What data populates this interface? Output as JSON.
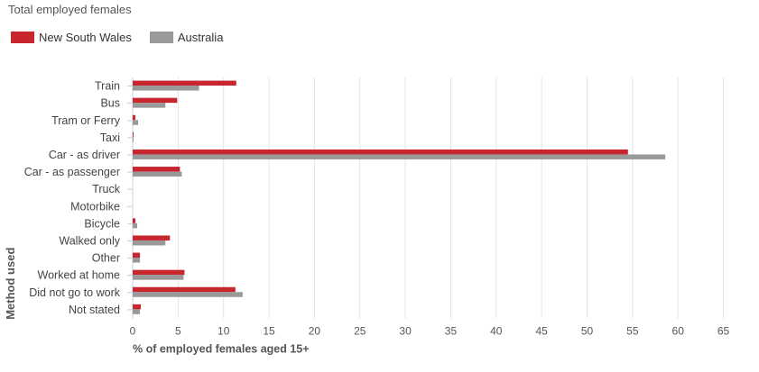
{
  "chart_data": {
    "type": "bar",
    "orientation": "horizontal",
    "title": "Total employed females",
    "xlabel": "% of employed females aged 15+",
    "ylabel": "Method used",
    "xlim": [
      0,
      65
    ],
    "xticks": [
      0,
      5,
      10,
      15,
      20,
      25,
      30,
      35,
      40,
      45,
      50,
      55,
      60,
      65
    ],
    "grid": "vertical",
    "legend_position": "top-left",
    "categories": [
      "Train",
      "Bus",
      "Tram or Ferry",
      "Taxi",
      "Car - as driver",
      "Car - as passenger",
      "Truck",
      "Motorbike",
      "Bicycle",
      "Walked only",
      "Other",
      "Worked at home",
      "Did not go to work",
      "Not stated"
    ],
    "series": [
      {
        "name": "New South Wales",
        "color": "#c8262e",
        "values": [
          11.4,
          4.9,
          0.3,
          0.1,
          54.5,
          5.2,
          0.0,
          0.0,
          0.3,
          4.1,
          0.8,
          5.7,
          11.3,
          0.9
        ]
      },
      {
        "name": "Australia",
        "color": "#999999",
        "values": [
          7.3,
          3.6,
          0.6,
          0.1,
          58.6,
          5.4,
          0.0,
          0.0,
          0.5,
          3.6,
          0.8,
          5.6,
          12.1,
          0.8
        ]
      }
    ]
  }
}
